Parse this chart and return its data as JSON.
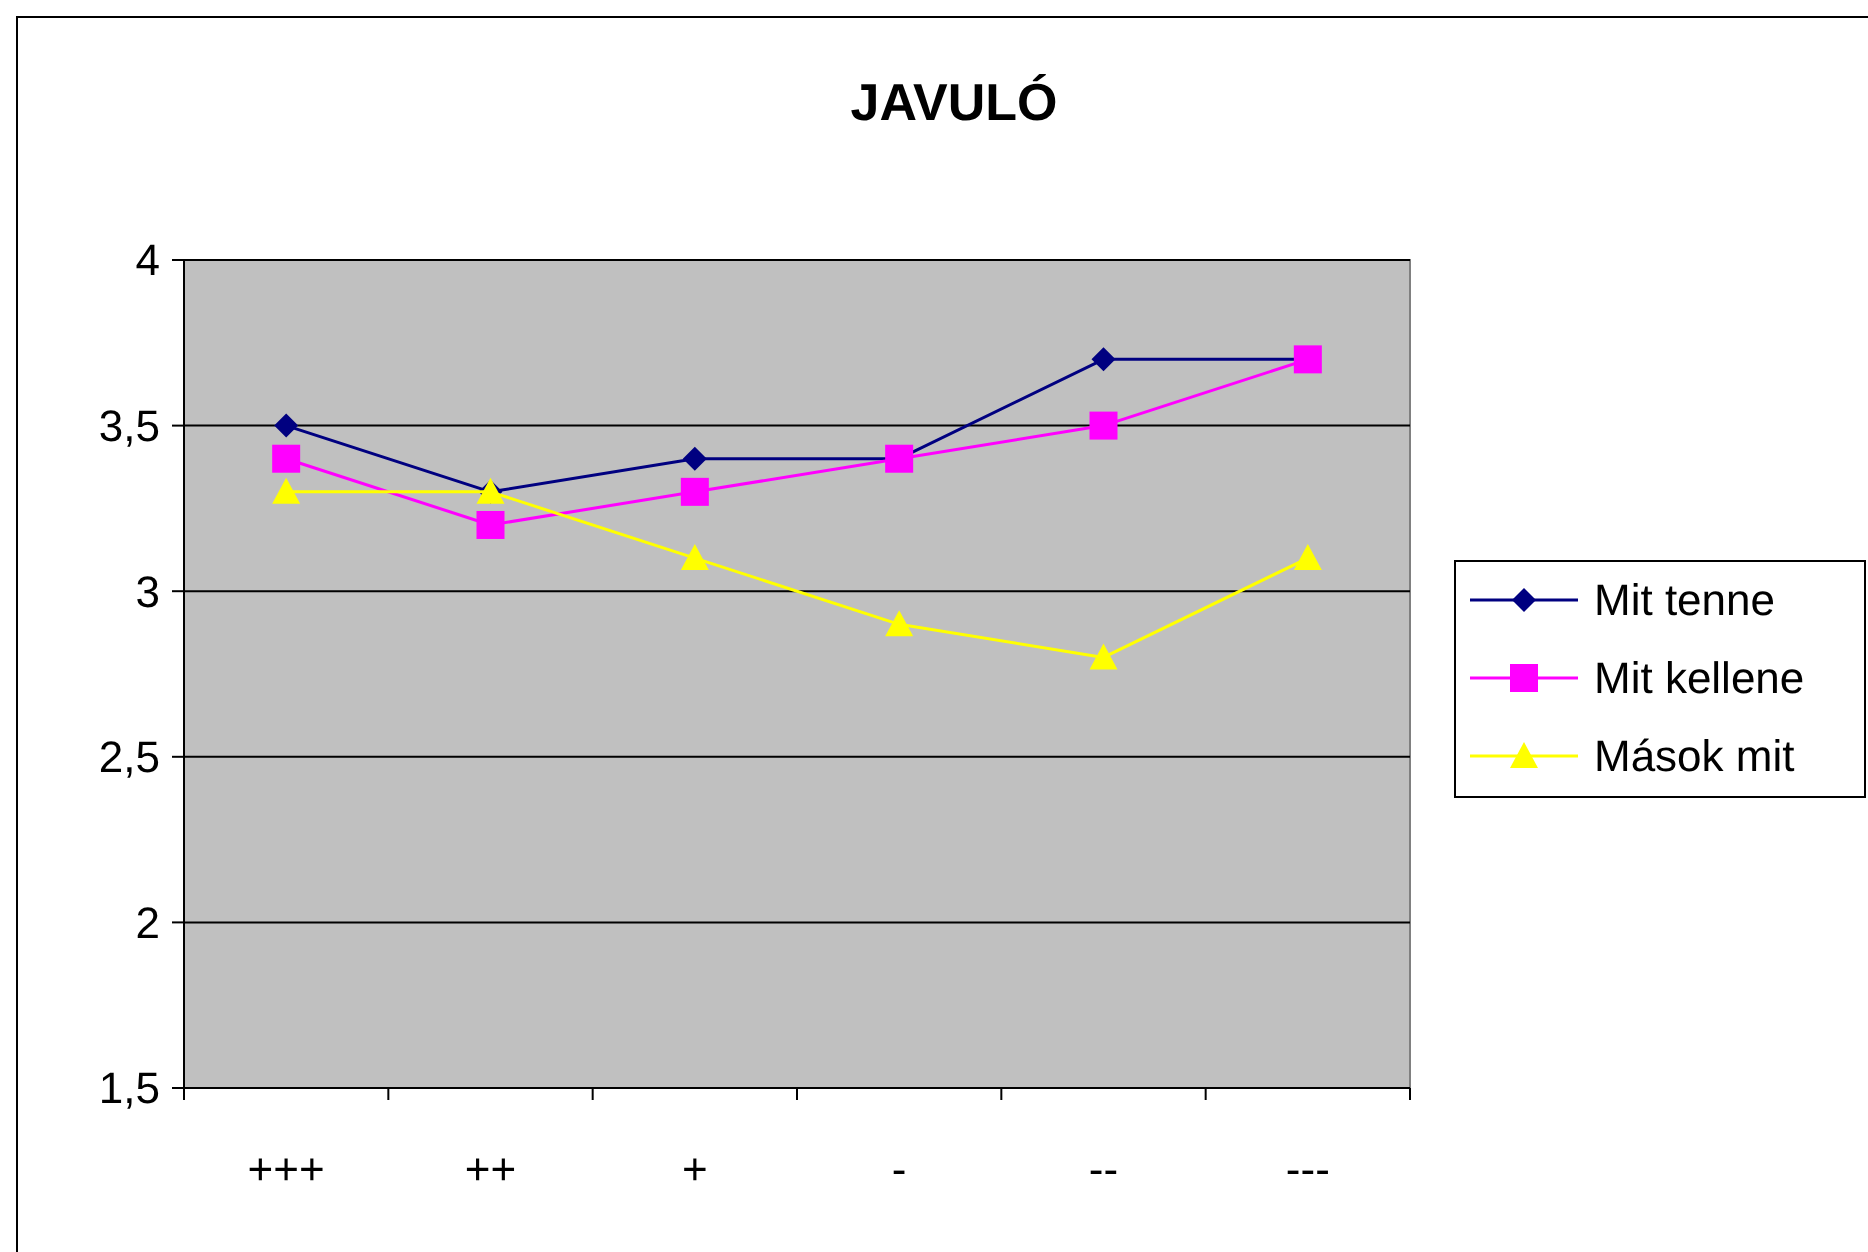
{
  "chart_data": {
    "type": "line",
    "title": "JAVULÓ",
    "categories": [
      "+++",
      "++",
      "+",
      "-",
      "--",
      "---"
    ],
    "series": [
      {
        "name": "Mit tenne",
        "color": "#000080",
        "marker": "diamond",
        "values": [
          3.5,
          3.3,
          3.4,
          3.4,
          3.7,
          3.7
        ]
      },
      {
        "name": "Mit kellene",
        "color": "#ff00ff",
        "marker": "square",
        "values": [
          3.4,
          3.2,
          3.3,
          3.4,
          3.5,
          3.7
        ]
      },
      {
        "name": "Mások mit",
        "color": "#ffff00",
        "marker": "triangle",
        "values": [
          3.3,
          3.3,
          3.1,
          2.9,
          2.8,
          3.1
        ]
      }
    ],
    "ylim": [
      1.5,
      4
    ],
    "yticks": [
      {
        "value": 1.5,
        "label": "1,5"
      },
      {
        "value": 2,
        "label": "2"
      },
      {
        "value": 2.5,
        "label": "2,5"
      },
      {
        "value": 3,
        "label": "3"
      },
      {
        "value": 3.5,
        "label": "3,5"
      },
      {
        "value": 4,
        "label": "4"
      }
    ],
    "grid": "y",
    "legend": "right"
  }
}
